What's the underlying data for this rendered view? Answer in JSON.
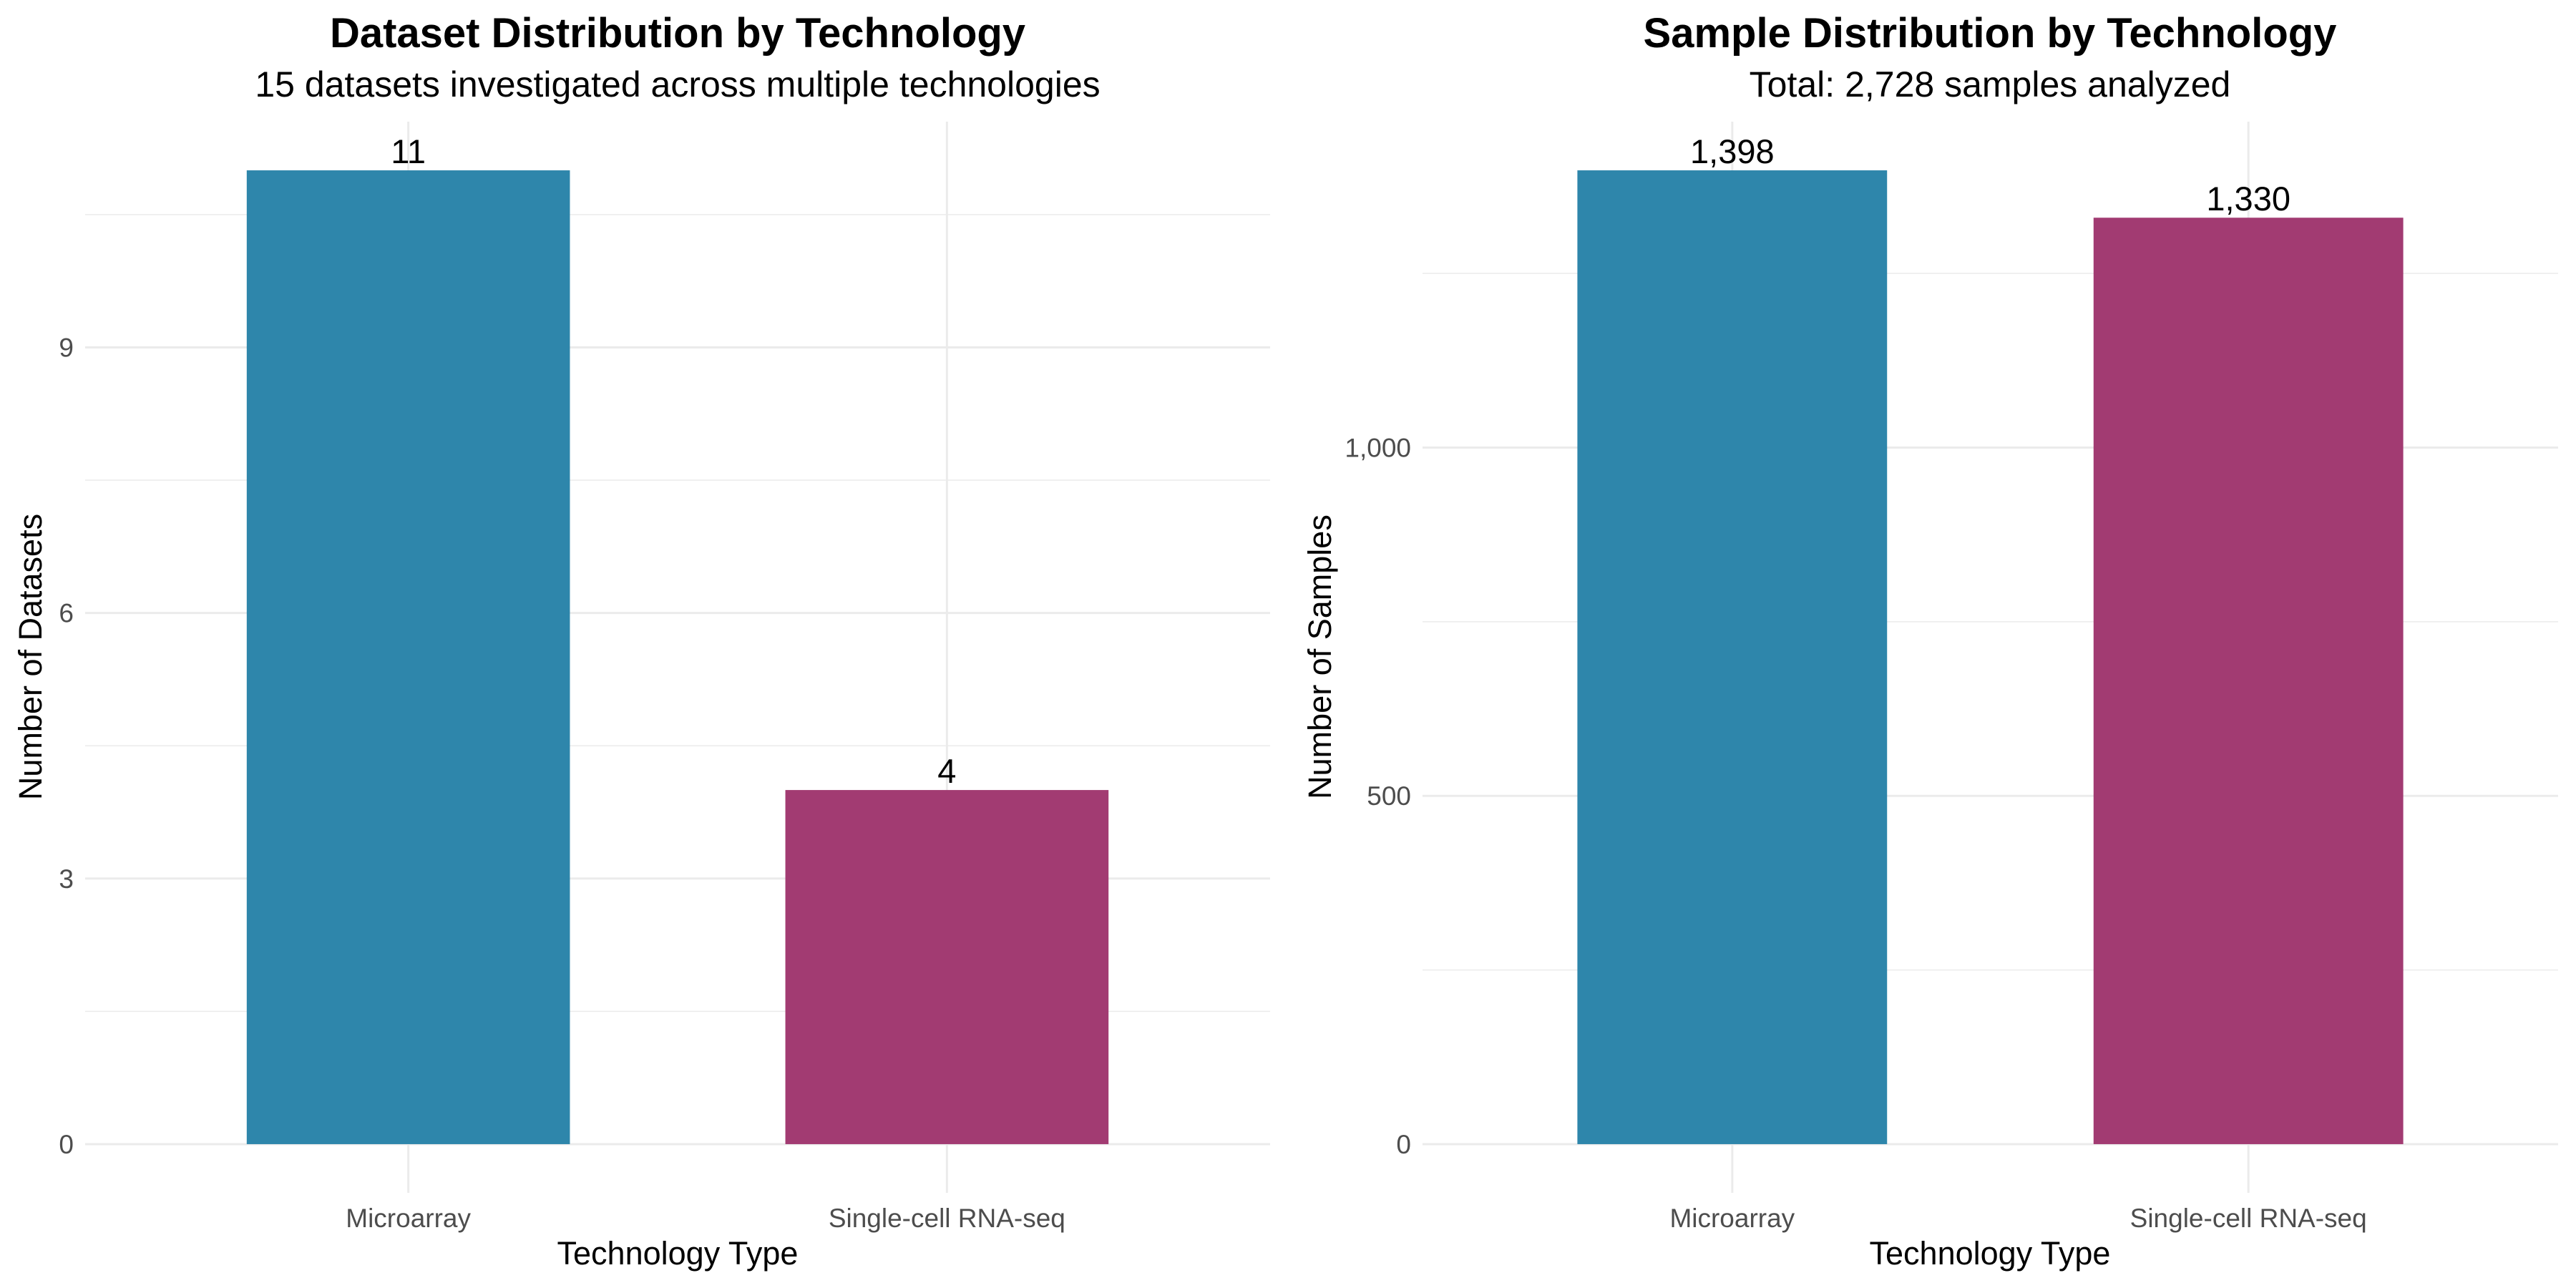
{
  "chart_data": [
    {
      "type": "bar",
      "title": "Dataset Distribution by Technology",
      "subtitle": "15 datasets investigated across multiple technologies",
      "xlabel": "Technology Type",
      "ylabel": "Number of Datasets",
      "categories": [
        "Microarray",
        "Single-cell RNA-seq"
      ],
      "values": [
        11,
        4
      ],
      "value_labels": [
        "11",
        "4"
      ],
      "bar_colors": [
        "#2E86AB",
        "#A23B72"
      ],
      "ylim": [
        -0.55,
        11.55
      ],
      "yticks": [
        0,
        3,
        6,
        9
      ],
      "ytick_labels": [
        "0",
        "3",
        "6",
        "9"
      ],
      "grid": true,
      "legend": "none"
    },
    {
      "type": "bar",
      "title": "Sample Distribution by Technology",
      "subtitle": "Total: 2,728 samples analyzed",
      "xlabel": "Technology Type",
      "ylabel": "Number of Samples",
      "categories": [
        "Microarray",
        "Single-cell RNA-seq"
      ],
      "values": [
        1398,
        1330
      ],
      "value_labels": [
        "1,398",
        "1,330"
      ],
      "bar_colors": [
        "#2E86AB",
        "#A23B72"
      ],
      "ylim": [
        -69.9,
        1467.9
      ],
      "yticks": [
        0,
        500,
        1000
      ],
      "ytick_labels": [
        "0",
        "500",
        "1,000"
      ],
      "grid": true,
      "legend": "none"
    }
  ],
  "colors": {
    "background": "#ffffff",
    "grid": "#ebebeb",
    "tick_text": "#4d4d4d",
    "text": "#000000"
  }
}
